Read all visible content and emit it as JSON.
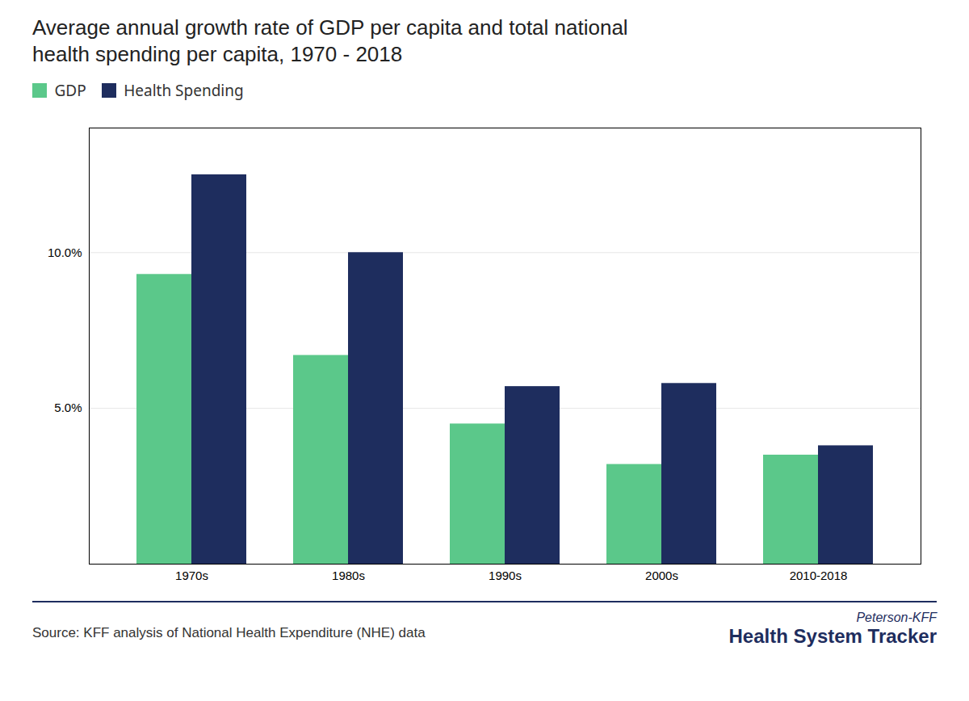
{
  "chart_data": {
    "type": "bar",
    "title": "Average annual growth rate of GDP per capita and total national\nhealth spending per capita, 1970 - 2018",
    "categories": [
      "1970s",
      "1980s",
      "1990s",
      "2000s",
      "2010-2018"
    ],
    "series": [
      {
        "name": "GDP",
        "color": "#5bc88a",
        "values": [
          9.3,
          6.7,
          4.5,
          3.2,
          3.5
        ]
      },
      {
        "name": "Health Spending",
        "color": "#1e2d5e",
        "values": [
          12.5,
          10.0,
          5.7,
          5.8,
          3.8
        ]
      }
    ],
    "ylim": [
      0,
      14
    ],
    "yticks": [
      {
        "value": 0,
        "label": ""
      },
      {
        "value": 5.0,
        "label": "5.0%"
      },
      {
        "value": 10.0,
        "label": "10.0%"
      }
    ],
    "grid": true,
    "legend": "upper left",
    "caption": "Source: KFF analysis of National Health Expenditure (NHE) data",
    "annotations": [
      "Peterson-KFF",
      "Health System Tracker"
    ]
  }
}
